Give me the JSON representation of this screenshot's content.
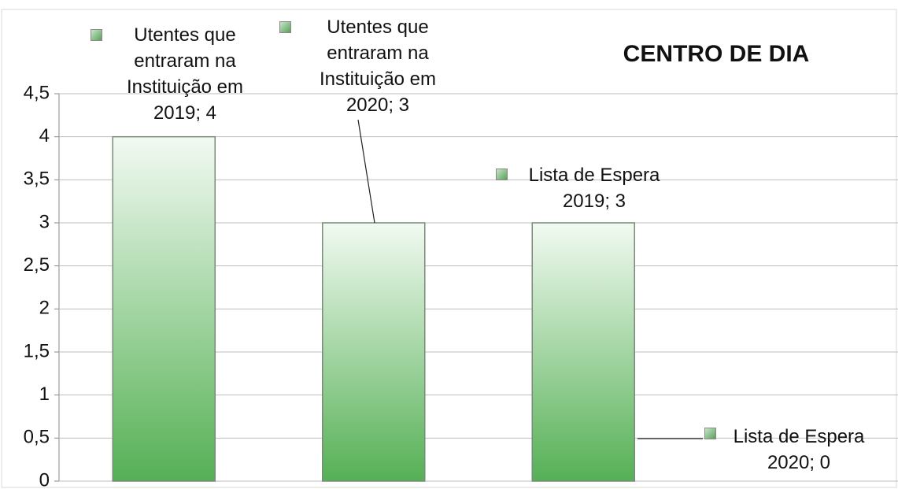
{
  "chart_data": {
    "type": "bar",
    "title": "CENTRO DE DIA",
    "categories": [
      null,
      null,
      null,
      null
    ],
    "values": [
      4,
      3,
      3,
      0
    ],
    "value_labels": [
      "Utentes que entraram na Instituição em 2019; 4",
      "Utentes que entraram na Instituição em 2020; 3",
      "Lista de Espera 2019; 3",
      "Lista de Espera 2020; 0"
    ],
    "color": "#55b055",
    "ylim": [
      0,
      4.5
    ],
    "yticks": [
      0,
      {
        "value": 0.5,
        "label": "0,5"
      },
      1,
      {
        "value": 1.5,
        "label": "1,5"
      },
      2,
      {
        "value": 2.5,
        "label": "2,5"
      },
      3,
      {
        "value": 3.5,
        "label": "3,5"
      },
      4,
      {
        "value": 4.5,
        "label": "4,5"
      }
    ],
    "grid": true
  }
}
